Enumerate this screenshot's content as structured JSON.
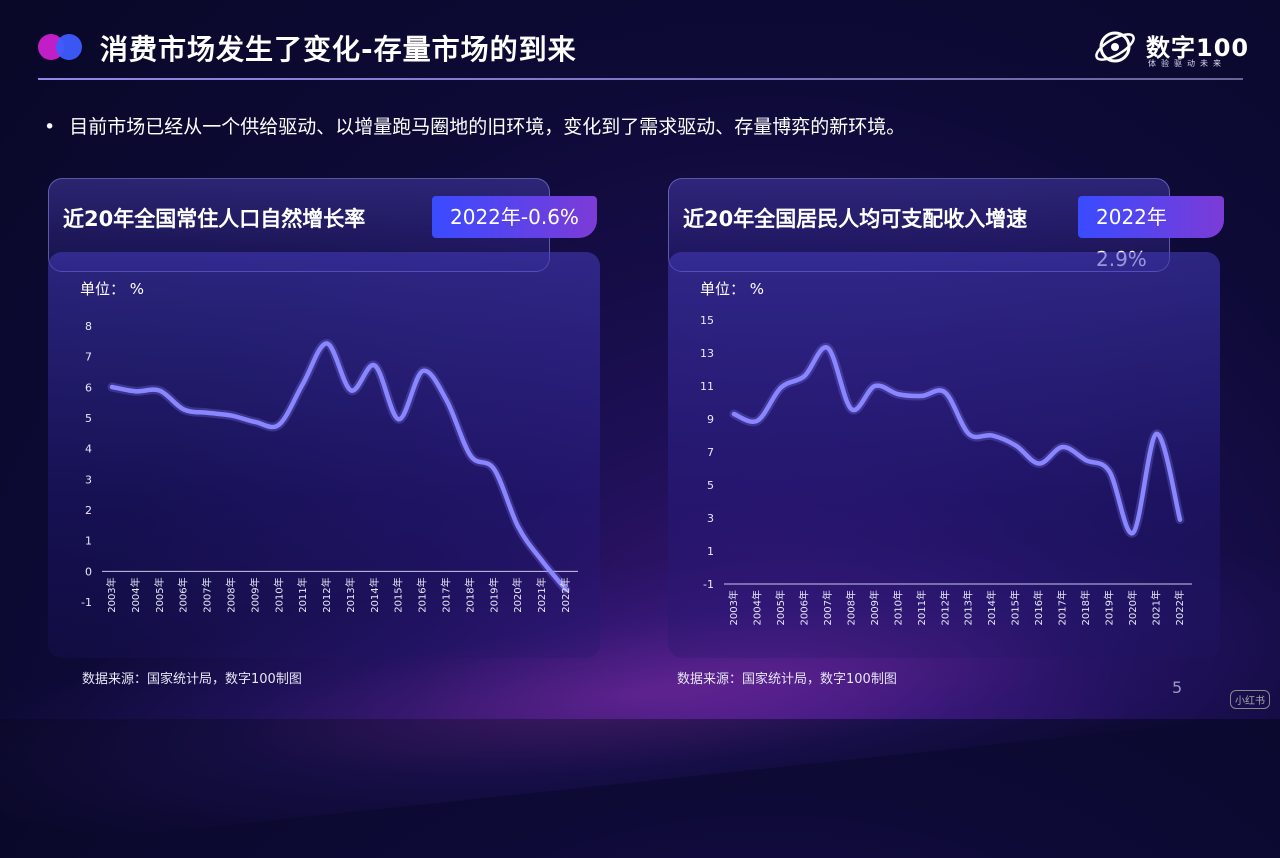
{
  "header": {
    "title": "消费市场发生了变化-存量市场的到来",
    "brand_name": "数字100",
    "brand_sub": "体验驱动未来"
  },
  "bullet": {
    "marker": "•",
    "text": "目前市场已经从一个供给驱动、以增量跑马圈地的旧环境，变化到了需求驱动、存量博弈的新环境。"
  },
  "colors": {
    "line": "#8a86ff",
    "badge_from": "#3a4bff",
    "badge_to": "#7c3bd6",
    "accent_dot1": "#c21ec8",
    "accent_dot2": "#3d5cff"
  },
  "left_panel": {
    "title": "近20年全国常住人口自然增长率",
    "badge": "2022年-0.6%",
    "unit": "单位： %",
    "source": "数据来源：国家统计局，数字100制图"
  },
  "right_panel": {
    "title": "近20年全国居民人均可支配收入增速",
    "badge": "2022年2.9%",
    "unit": "单位： %",
    "source": "数据来源：国家统计局，数字100制图"
  },
  "page_number": "5",
  "watermark": "小红书",
  "chart_data": [
    {
      "type": "line",
      "title": "近20年全国常住人口自然增长率",
      "ylabel": "单位： %",
      "categories": [
        "2003年",
        "2004年",
        "2005年",
        "2006年",
        "2007年",
        "2008年",
        "2009年",
        "2010年",
        "2011年",
        "2012年",
        "2013年",
        "2014年",
        "2015年",
        "2016年",
        "2017年",
        "2018年",
        "2019年",
        "2020年",
        "2021年",
        "2022年"
      ],
      "values": [
        6.01,
        5.87,
        5.89,
        5.28,
        5.17,
        5.08,
        4.87,
        4.79,
        6.13,
        7.43,
        5.9,
        6.71,
        4.96,
        6.53,
        5.58,
        3.78,
        3.32,
        1.45,
        0.34,
        -0.6
      ],
      "yticks": [
        -1,
        0,
        1,
        2,
        3,
        4,
        5,
        6,
        7,
        8
      ],
      "ylim": [
        -1,
        8
      ],
      "grid": false,
      "drop_lines": true
    },
    {
      "type": "line",
      "title": "近20年全国居民人均可支配收入增速",
      "ylabel": "单位： %",
      "categories": [
        "2003年",
        "2004年",
        "2005年",
        "2006年",
        "2007年",
        "2008年",
        "2009年",
        "2010年",
        "2011年",
        "2012年",
        "2013年",
        "2014年",
        "2015年",
        "2016年",
        "2017年",
        "2018年",
        "2019年",
        "2020年",
        "2021年",
        "2022年"
      ],
      "values": [
        9.3,
        8.9,
        10.9,
        11.6,
        13.3,
        9.6,
        11.0,
        10.5,
        10.4,
        10.6,
        8.1,
        8.0,
        7.4,
        6.3,
        7.3,
        6.5,
        5.8,
        2.1,
        8.1,
        2.9
      ],
      "yticks": [
        -1,
        1,
        3,
        5,
        7,
        9,
        11,
        13,
        15
      ],
      "ylim": [
        -1,
        15
      ],
      "grid": false,
      "drop_lines": true
    }
  ]
}
